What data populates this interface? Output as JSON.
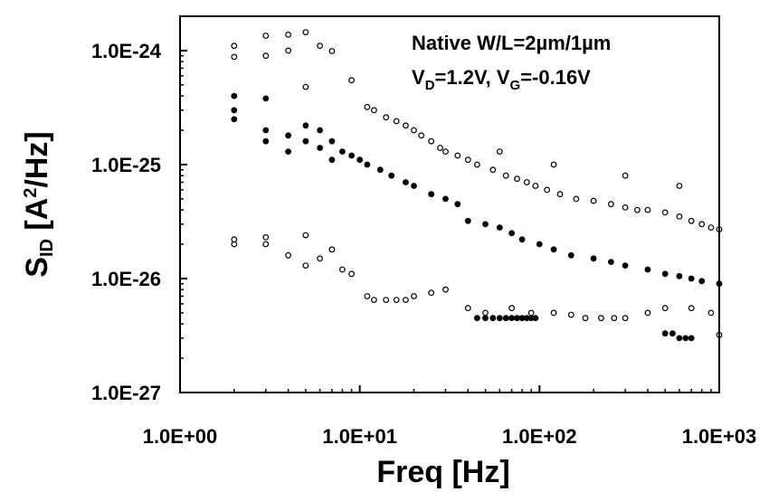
{
  "chart_data": {
    "type": "scatter",
    "title": "",
    "xlabel": "Freq [Hz]",
    "ylabel": {
      "prefix": "S",
      "subscript": "ID",
      "unit_open": " [A",
      "superscript": "2",
      "unit_close": "/Hz]"
    },
    "x_scale": "log",
    "y_scale": "log",
    "xlim": [
      1,
      1000
    ],
    "ylim": [
      1e-27,
      2e-24
    ],
    "x_ticks": [
      {
        "value": 1,
        "label": "1.0E+00"
      },
      {
        "value": 10,
        "label": "1.0E+01"
      },
      {
        "value": 100,
        "label": "1.0E+02"
      },
      {
        "value": 1000,
        "label": "1.0E+03"
      }
    ],
    "y_ticks": [
      {
        "value": 1e-27,
        "label": "1.0E-27"
      },
      {
        "value": 1e-26,
        "label": "1.0E-26"
      },
      {
        "value": 1e-25,
        "label": "1.0E-25"
      },
      {
        "value": 1e-24,
        "label": "1.0E-24"
      }
    ],
    "grid": false,
    "legend": "none",
    "annotations": [
      {
        "parts": [
          {
            "text": "Native W/L=2µm/1µm"
          }
        ]
      },
      {
        "parts": [
          {
            "text": "V"
          },
          {
            "text": "D",
            "sub": true
          },
          {
            "text": "=1.2V, V"
          },
          {
            "text": "G",
            "sub": true
          },
          {
            "text": "=-0.16V"
          }
        ]
      }
    ],
    "series": [
      {
        "marker": "filled-circle",
        "color": "#000000",
        "description_trend": "approximately 1/f, decreasing from ~2e-25 at 2 Hz to ~1e-26 at 1 kHz",
        "points": [
          [
            2,
            4e-25
          ],
          [
            2,
            3e-25
          ],
          [
            2,
            2.5e-25
          ],
          [
            3,
            3.8e-25
          ],
          [
            3,
            2e-25
          ],
          [
            3,
            1.6e-25
          ],
          [
            4,
            1.8e-25
          ],
          [
            4,
            1.3e-25
          ],
          [
            5,
            2.2e-25
          ],
          [
            5,
            1.6e-25
          ],
          [
            6,
            2e-25
          ],
          [
            6,
            1.4e-25
          ],
          [
            7,
            1.6e-25
          ],
          [
            7,
            1.1e-25
          ],
          [
            8,
            1.3e-25
          ],
          [
            9,
            1.2e-25
          ],
          [
            10,
            1.1e-25
          ],
          [
            11,
            1e-25
          ],
          [
            13,
            9e-26
          ],
          [
            15,
            8e-26
          ],
          [
            18,
            7e-26
          ],
          [
            20,
            6.5e-26
          ],
          [
            25,
            5.5e-26
          ],
          [
            30,
            5e-26
          ],
          [
            35,
            4.5e-26
          ],
          [
            40,
            3.2e-26
          ],
          [
            50,
            3e-26
          ],
          [
            60,
            2.8e-26
          ],
          [
            70,
            2.5e-26
          ],
          [
            80,
            2.2e-26
          ],
          [
            100,
            2e-26
          ],
          [
            120,
            1.8e-26
          ],
          [
            150,
            1.6e-26
          ],
          [
            200,
            1.5e-26
          ],
          [
            250,
            1.4e-26
          ],
          [
            300,
            1.3e-26
          ],
          [
            400,
            1.2e-26
          ],
          [
            500,
            1.1e-26
          ],
          [
            600,
            1.05e-26
          ],
          [
            700,
            1e-26
          ],
          [
            800,
            9.5e-27
          ],
          [
            1000,
            9e-27
          ],
          [
            45,
            4.5e-27
          ],
          [
            50,
            4.5e-27
          ],
          [
            55,
            4.5e-27
          ],
          [
            60,
            4.5e-27
          ],
          [
            65,
            4.5e-27
          ],
          [
            70,
            4.5e-27
          ],
          [
            75,
            4.5e-27
          ],
          [
            80,
            4.5e-27
          ],
          [
            85,
            4.5e-27
          ],
          [
            90,
            4.5e-27
          ],
          [
            95,
            4.5e-27
          ],
          [
            500,
            3.3e-27
          ],
          [
            550,
            3.3e-27
          ],
          [
            600,
            3e-27
          ],
          [
            650,
            3e-27
          ],
          [
            700,
            3e-27
          ]
        ]
      },
      {
        "marker": "open-circle",
        "color": "#000000",
        "description_trend": "dense cloud spanning roughly 1e-26 to 1e-24, decreasing with frequency",
        "points": [
          [
            2,
            1.1e-24
          ],
          [
            2,
            8.8e-25
          ],
          [
            3,
            1.35e-24
          ],
          [
            3,
            9e-25
          ],
          [
            4,
            1.38e-24
          ],
          [
            4,
            1e-24
          ],
          [
            5,
            1.45e-24
          ],
          [
            5,
            4.8e-25
          ],
          [
            6,
            1.1e-24
          ],
          [
            7,
            9.9e-25
          ],
          [
            9,
            5.5e-25
          ],
          [
            2,
            2e-26
          ],
          [
            2,
            2.2e-26
          ],
          [
            3,
            2e-26
          ],
          [
            3,
            2.3e-26
          ],
          [
            4,
            1.6e-26
          ],
          [
            5,
            2.4e-26
          ],
          [
            5,
            1.3e-26
          ],
          [
            6,
            1.5e-26
          ],
          [
            7,
            1.8e-26
          ],
          [
            8,
            1.2e-26
          ],
          [
            9,
            1.1e-26
          ],
          [
            11,
            3.2e-25
          ],
          [
            12,
            3e-25
          ],
          [
            14,
            2.6e-25
          ],
          [
            16,
            2.4e-25
          ],
          [
            18,
            2.2e-25
          ],
          [
            20,
            2e-25
          ],
          [
            22,
            1.8e-25
          ],
          [
            25,
            1.6e-25
          ],
          [
            28,
            1.4e-25
          ],
          [
            30,
            1.3e-25
          ],
          [
            35,
            1.2e-25
          ],
          [
            40,
            1.1e-25
          ],
          [
            45,
            1e-25
          ],
          [
            55,
            9e-26
          ],
          [
            65,
            8e-26
          ],
          [
            75,
            7.5e-26
          ],
          [
            85,
            7e-26
          ],
          [
            95,
            6.5e-26
          ],
          [
            110,
            6e-26
          ],
          [
            130,
            5.5e-26
          ],
          [
            160,
            5e-26
          ],
          [
            200,
            4.8e-26
          ],
          [
            250,
            4.5e-26
          ],
          [
            300,
            4.2e-26
          ],
          [
            350,
            4e-26
          ],
          [
            400,
            4e-26
          ],
          [
            500,
            3.8e-26
          ],
          [
            600,
            3.5e-26
          ],
          [
            700,
            3.2e-26
          ],
          [
            800,
            3e-26
          ],
          [
            900,
            2.8e-26
          ],
          [
            1000,
            2.7e-26
          ],
          [
            11,
            7e-27
          ],
          [
            12,
            6.5e-27
          ],
          [
            14,
            6.5e-27
          ],
          [
            16,
            6.5e-27
          ],
          [
            18,
            6.5e-27
          ],
          [
            20,
            7e-27
          ],
          [
            25,
            7.5e-27
          ],
          [
            30,
            8e-27
          ],
          [
            40,
            5.5e-27
          ],
          [
            50,
            5e-27
          ],
          [
            70,
            5.5e-27
          ],
          [
            90,
            5e-27
          ],
          [
            120,
            5e-27
          ],
          [
            150,
            4.8e-27
          ],
          [
            180,
            4.5e-27
          ],
          [
            220,
            4.5e-27
          ],
          [
            260,
            4.5e-27
          ],
          [
            300,
            4.5e-27
          ],
          [
            400,
            5e-27
          ],
          [
            500,
            5.5e-27
          ],
          [
            700,
            5.5e-27
          ],
          [
            900,
            5e-27
          ],
          [
            1000,
            3.2e-27
          ],
          [
            60,
            1.3e-25
          ],
          [
            120,
            1e-25
          ],
          [
            300,
            8e-26
          ],
          [
            600,
            6.5e-26
          ]
        ]
      }
    ]
  }
}
